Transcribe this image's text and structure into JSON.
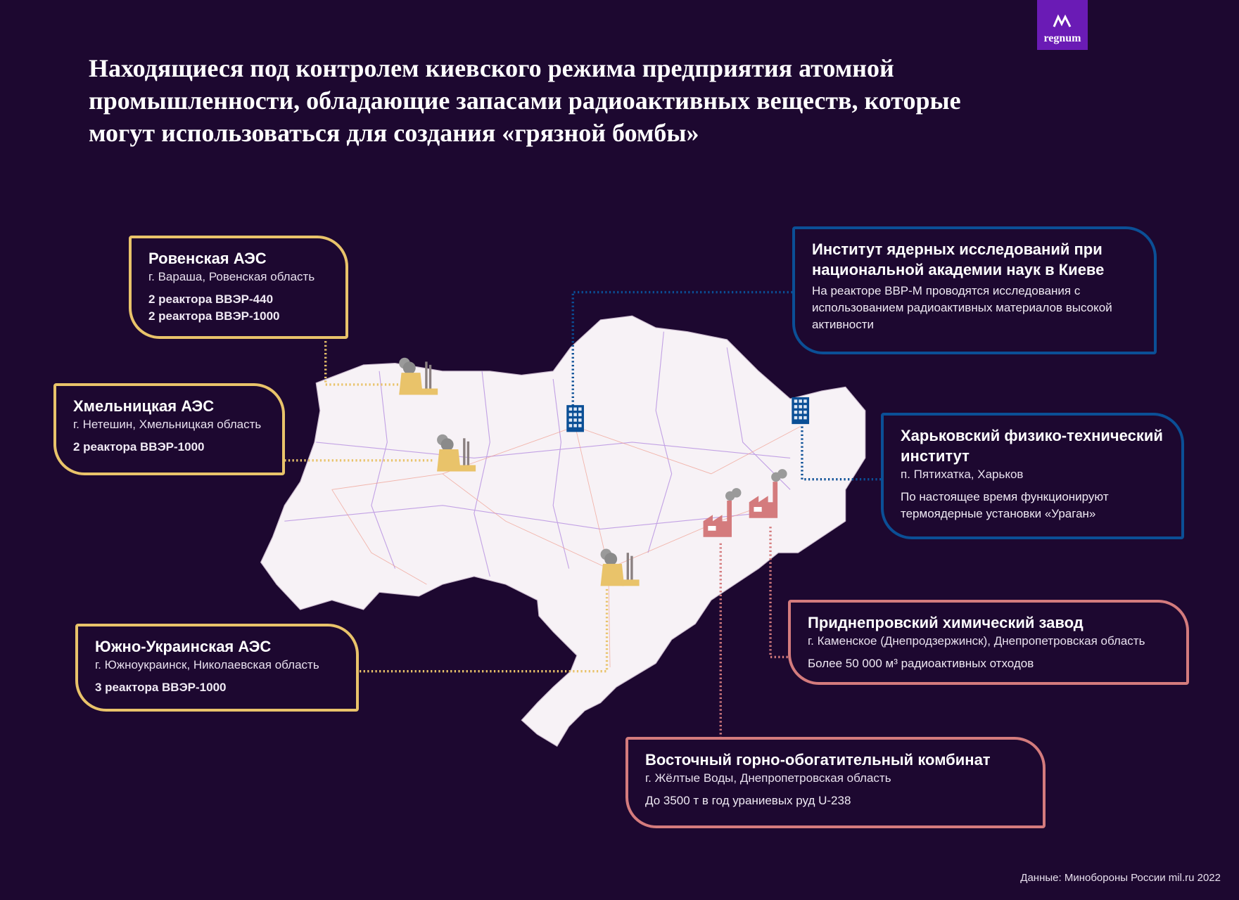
{
  "title": "Находящиеся под контролем киевского режима предприятия атомной промышленности, обладающие запасами радиоактивных веществ, которые могут использоваться для создания «грязной бомбы»",
  "logo": {
    "text": "regnum",
    "color": "#6a1bb5"
  },
  "colors": {
    "background": "#1d0830",
    "npp": "#e9c36a",
    "institute": "#0b4f96",
    "plant": "#d47b7d",
    "map_fill": "#f7f2f6"
  },
  "sites": [
    {
      "name": "Ровенская АЭС",
      "location": "г. Вараша, Ровенская область",
      "details": [
        "2 реактора ВВЭР-440",
        "2 реактора ВВЭР-1000"
      ],
      "type": "npp",
      "icon": "nuclear-power-plant-icon"
    },
    {
      "name": "Хмельницкая АЭС",
      "location": "г. Нетешин, Хмельницкая область",
      "details": [
        "2 реактора ВВЭР-1000"
      ],
      "type": "npp",
      "icon": "nuclear-power-plant-icon"
    },
    {
      "name": "Южно-Украинская АЭС",
      "location": "г. Южноукраинск, Николаевская область",
      "details": [
        "3 реактора ВВЭР-1000"
      ],
      "type": "npp",
      "icon": "nuclear-power-plant-icon"
    },
    {
      "name": "Институт ядерных исследований при национальной академии наук в Киеве",
      "details": [
        "На реакторе ВВР-М проводятся исследования с использованием радиоактивных материалов высокой активности"
      ],
      "type": "institute",
      "icon": "institute-building-icon"
    },
    {
      "name": "Харьковский физико-технический институт",
      "location": "п. Пятихатка, Харьков",
      "details": [
        "По настоящее время функционируют термоядерные установки «Ураган»"
      ],
      "type": "institute",
      "icon": "institute-building-icon"
    },
    {
      "name": "Приднепровский химический завод",
      "location": "г. Каменское (Днепродзержинск), Днепропетровская область",
      "details": [
        "Более 50 000 м³ радиоактивных отходов"
      ],
      "type": "plant",
      "icon": "factory-icon"
    },
    {
      "name": "Восточный горно-обогатительный комбинат",
      "location": "г. Жёлтые Воды, Днепропетровская область",
      "details": [
        "До 3500 т в год урaниевых руд U-238"
      ],
      "type": "plant",
      "icon": "factory-icon"
    }
  ],
  "source": "Данные: Минобороны России mil.ru 2022"
}
